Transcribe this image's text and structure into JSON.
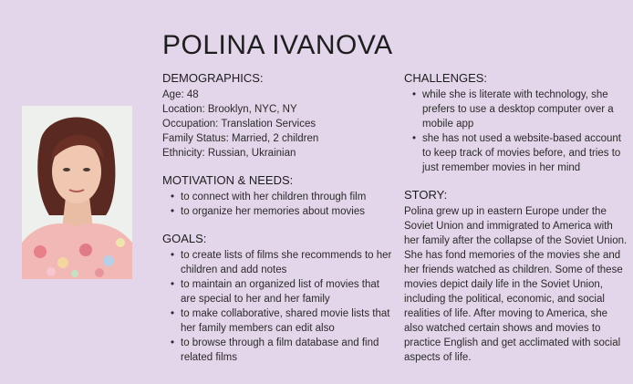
{
  "persona": {
    "name": "POLINA  IVANOVA"
  },
  "demographics": {
    "heading": "DEMOGRAPHICS:",
    "lines": [
      "Age: 48",
      "Location:  Brooklyn,  NYC,  NY",
      "Occupation: Translation Services",
      "Family Status:  Married, 2 children",
      "Ethnicity:  Russian, Ukrainian"
    ]
  },
  "motivation": {
    "heading": "MOTIVATION & NEEDS:",
    "items": [
      "to connect with her children through film",
      "to organize her memories about movies"
    ]
  },
  "goals": {
    "heading": "GOALS:",
    "items": [
      "to create lists of films she recommends to her children and add notes",
      "to maintain an organized list of movies that are special to her and her family",
      "to make collaborative, shared movie lists that her family members can edit also",
      "to browse through a film database and find related films"
    ]
  },
  "challenges": {
    "heading": "CHALLENGES:",
    "items": [
      "while she is literate with technology, she prefers to use a desktop computer over a mobile app",
      "she has not used a website-based account to keep track of movies before, and tries to just remember movies in her mind"
    ]
  },
  "story": {
    "heading": "STORY:",
    "text": "Polina grew up in eastern  Europe under the Soviet Union and immigrated to America with her family after the collapse of the Soviet Union. She has fond memories of the movies she and her friends watched as children. Some of these movies depict daily life in the Soviet Union, including the political, economic, and social realities of life. After moving to America, she also watched certain shows and movies to practice  English and get acclimated with social aspects of life."
  }
}
